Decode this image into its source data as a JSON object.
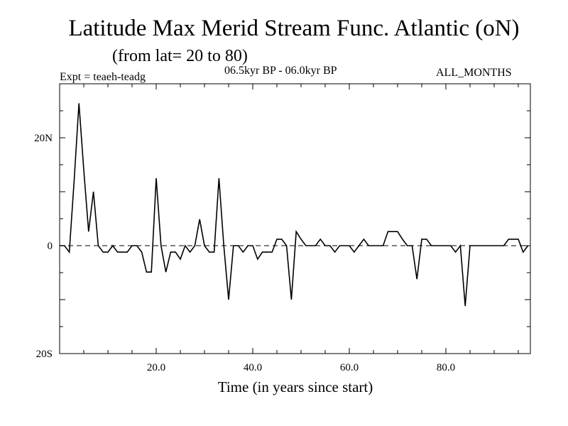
{
  "chart_data": {
    "type": "line",
    "title": "Latitude Max Merid Stream Func. Atlantic (oN)",
    "subtitle": "(from lat= 20 to 80)",
    "left_label": "Expt = teaeh-teadg",
    "center_label": "06.5kyr BP - 06.0kyr BP",
    "right_label": "ALL_MONTHS",
    "xlabel": "Time (in years since start)",
    "ylabel": "",
    "xlim": [
      0,
      97.5
    ],
    "ylim": [
      -20,
      30
    ],
    "x_ticks": [
      {
        "value": 20,
        "label": "20.0"
      },
      {
        "value": 40,
        "label": "40.0"
      },
      {
        "value": 60,
        "label": "60.0"
      },
      {
        "value": 80,
        "label": "80.0"
      }
    ],
    "y_ticks": [
      {
        "value": 20,
        "label": "20N"
      },
      {
        "value": 0,
        "label": "0"
      },
      {
        "value": -20,
        "label": "20S"
      }
    ],
    "zero_line": "dashed",
    "series": [
      {
        "name": "teaeh-teadg",
        "x": [
          0,
          1,
          2,
          3,
          4,
          5,
          6,
          7,
          8,
          9,
          10,
          11,
          12,
          13,
          14,
          15,
          16,
          17,
          18,
          19,
          20,
          21,
          22,
          23,
          24,
          25,
          26,
          27,
          28,
          29,
          30,
          31,
          32,
          33,
          34,
          35,
          36,
          37,
          38,
          39,
          40,
          41,
          42,
          43,
          44,
          45,
          46,
          47,
          48,
          49,
          50,
          51,
          52,
          53,
          54,
          55,
          56,
          57,
          58,
          59,
          60,
          61,
          62,
          63,
          64,
          65,
          66,
          67,
          68,
          69,
          70,
          71,
          72,
          73,
          74,
          75,
          76,
          77,
          78,
          79,
          80,
          81,
          82,
          83,
          84,
          85,
          86,
          87,
          88,
          89,
          90,
          91,
          92,
          93,
          94,
          95,
          96,
          97
        ],
        "values": [
          0,
          0,
          -1.2,
          12,
          26.4,
          14,
          2.6,
          10,
          0,
          -1.2,
          -1.2,
          0,
          -1.2,
          -1.2,
          -1.2,
          0,
          0,
          -1.2,
          -4.9,
          -4.9,
          12.5,
          0,
          -4.9,
          -1.2,
          -1.2,
          -2.5,
          0,
          -1.2,
          0,
          4.9,
          0,
          -1.2,
          -1.2,
          12.5,
          0,
          -10,
          0,
          0,
          -1.2,
          0,
          0,
          -2.5,
          -1.2,
          -1.2,
          -1.2,
          1.2,
          1.2,
          0,
          -10,
          2.6,
          1.2,
          0,
          0,
          0,
          1.2,
          0,
          0,
          -1.2,
          0,
          0,
          0,
          -1.2,
          0,
          1.2,
          0,
          0,
          0,
          0,
          2.6,
          2.6,
          2.6,
          1.2,
          0,
          0,
          -6.2,
          1.2,
          1.2,
          0,
          0,
          0,
          0,
          0,
          -1.2,
          0,
          -11.2,
          0,
          0,
          0,
          0,
          0,
          0,
          0,
          0,
          1.2,
          1.2,
          1.2,
          -1.2,
          0
        ]
      }
    ]
  }
}
